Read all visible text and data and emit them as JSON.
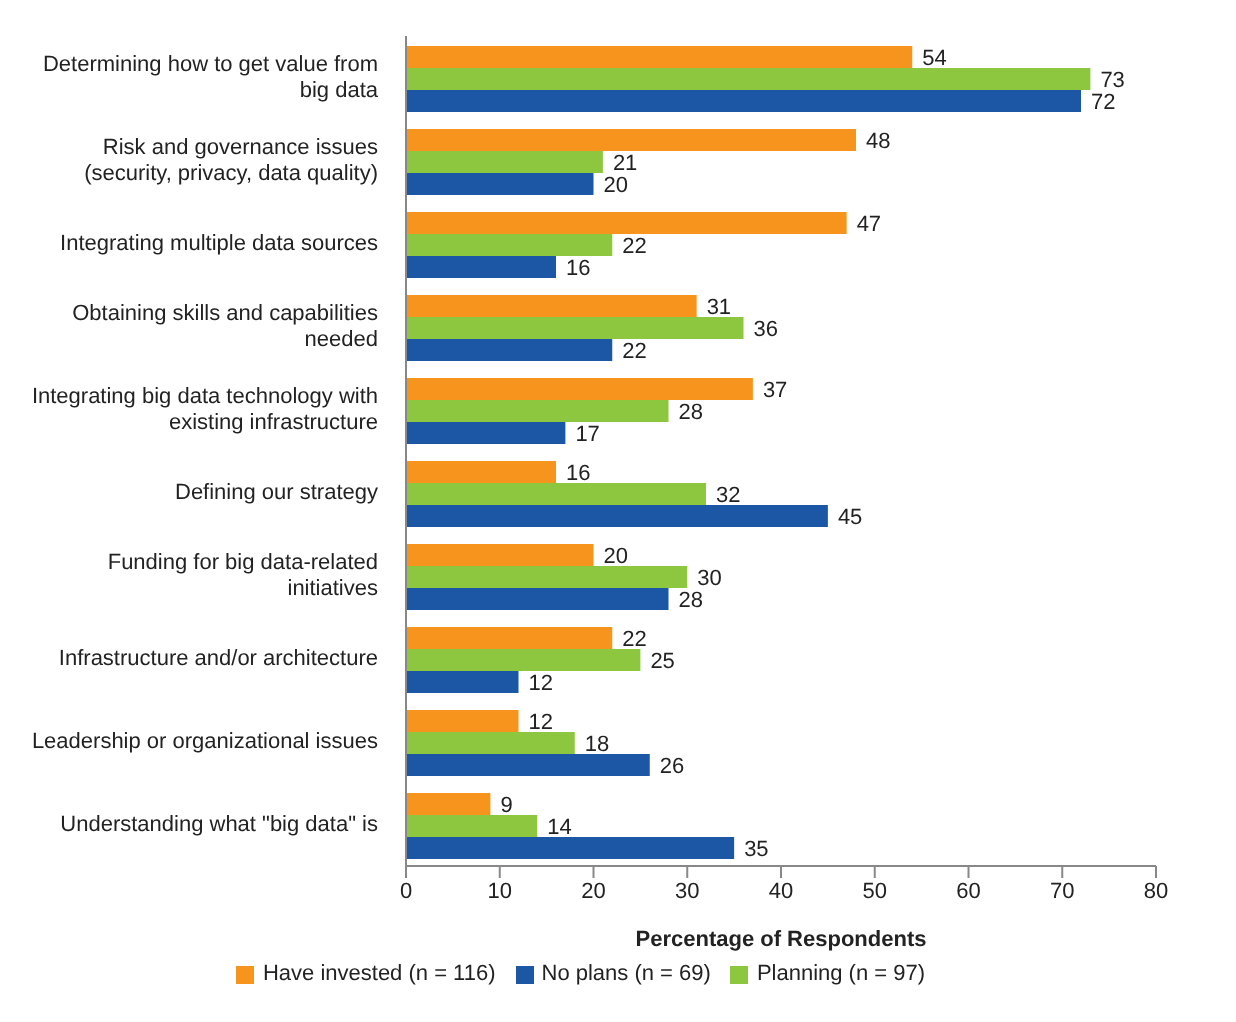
{
  "chart_data": {
    "type": "bar",
    "orientation": "horizontal",
    "xlabel": "Percentage of Respondents",
    "categories": [
      "Determining how to get value from big data",
      "Risk and governance issues (security, privacy, data quality)",
      "Integrating multiple data sources",
      "Obtaining skills and capabilities needed",
      "Integrating big data technology with existing infrastructure",
      "Defining our strategy",
      "Funding for big data-related initiatives",
      "Infrastructure and/or architecture",
      "Leadership or organizational issues",
      "Understanding what \"big data\" is"
    ],
    "series": [
      {
        "name": "Have invested (n = 116)",
        "color": "#f7941d",
        "values": [
          54,
          48,
          47,
          31,
          37,
          16,
          20,
          22,
          12,
          9
        ]
      },
      {
        "name": "Planning (n = 97)",
        "color": "#8dc63f",
        "values": [
          73,
          21,
          22,
          36,
          28,
          32,
          30,
          25,
          18,
          14
        ]
      },
      {
        "name": "No plans (n = 69)",
        "color": "#1c57a5",
        "values": [
          72,
          20,
          16,
          22,
          17,
          45,
          28,
          12,
          26,
          35
        ]
      }
    ],
    "xlim": [
      0,
      80
    ],
    "xticks": [
      0,
      10,
      20,
      30,
      40,
      50,
      60,
      70,
      80
    ],
    "data_labels": true,
    "legend": "bottom",
    "grid": false
  }
}
